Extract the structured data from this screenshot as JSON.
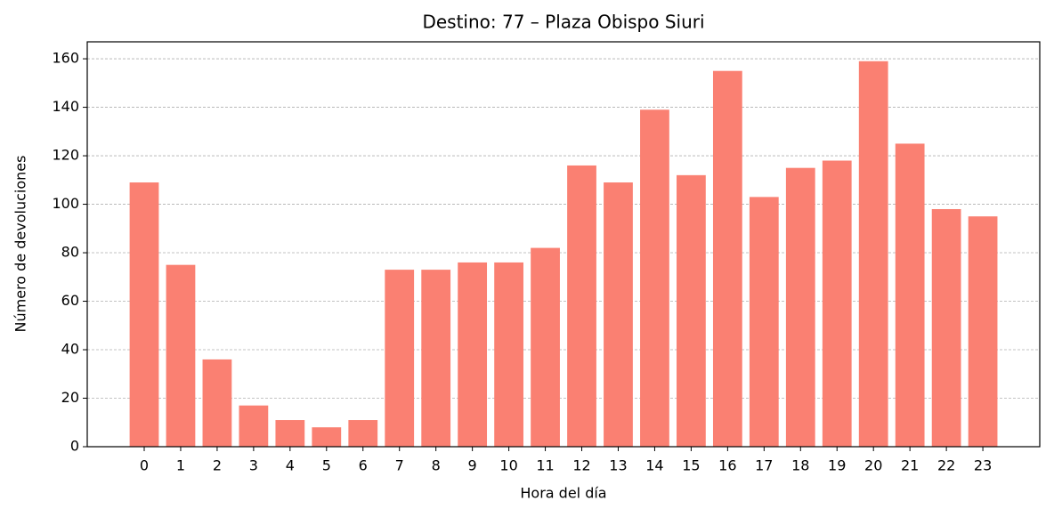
{
  "chart_data": {
    "type": "bar",
    "title": "Destino: 77 – Plaza Obispo Siuri",
    "x_label": "Hora del día",
    "y_label": "Número de devoluciones",
    "categories": [
      "0",
      "1",
      "2",
      "3",
      "4",
      "5",
      "6",
      "7",
      "8",
      "9",
      "10",
      "11",
      "12",
      "13",
      "14",
      "15",
      "16",
      "17",
      "18",
      "19",
      "20",
      "21",
      "22",
      "23"
    ],
    "values": [
      109,
      75,
      36,
      17,
      11,
      8,
      11,
      73,
      73,
      76,
      76,
      82,
      116,
      109,
      139,
      112,
      155,
      103,
      115,
      118,
      159,
      125,
      98,
      95
    ],
    "color": "#fa8072",
    "ylim": [
      0,
      167
    ],
    "yticks": [
      0,
      20,
      40,
      60,
      80,
      100,
      120,
      140,
      160
    ],
    "grid": true
  }
}
